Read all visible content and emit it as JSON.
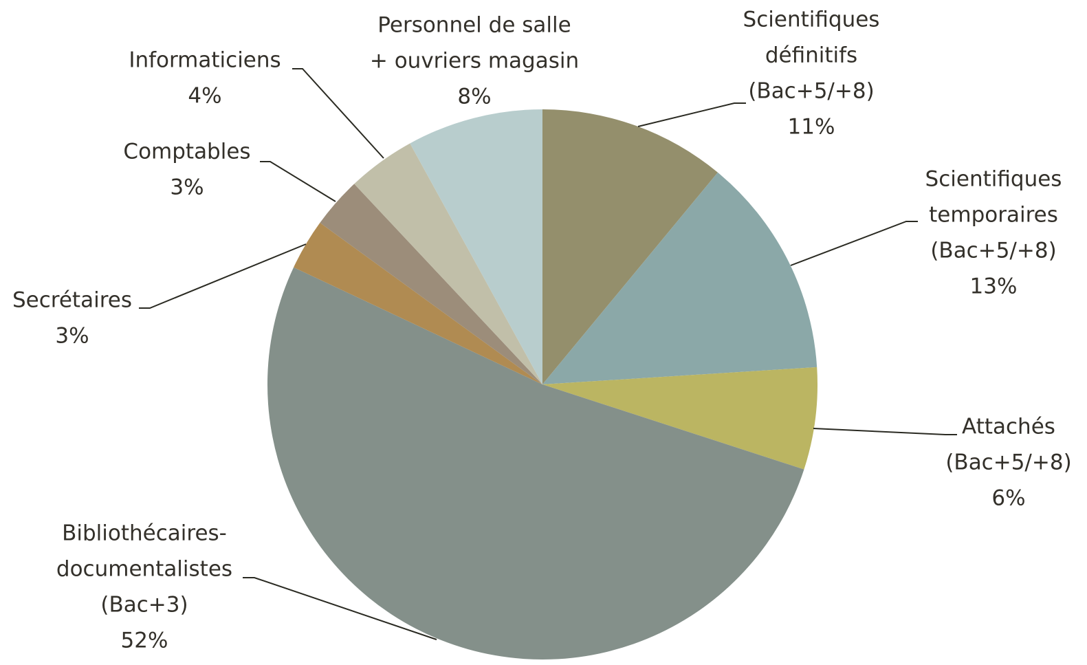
{
  "chart_data": {
    "type": "pie",
    "categories": [
      [
        "Scientifiques",
        "définitifs",
        "(Bac+5/+8)"
      ],
      [
        "Scientifiques",
        "temporaires",
        "(Bac+5/+8)"
      ],
      [
        "Attachés",
        "(Bac+5/+8)"
      ],
      [
        "Bibliothécaires-",
        "documentalistes",
        "(Bac+3)"
      ],
      [
        "Secrétaires"
      ],
      [
        "Comptables"
      ],
      [
        "Informaticiens"
      ],
      [
        "Personnel de salle",
        "+ ouvriers magasin"
      ]
    ],
    "values": [
      11,
      13,
      6,
      52,
      3,
      3,
      4,
      8
    ],
    "value_labels": [
      "11%",
      "13%",
      "6%",
      "52%",
      "3%",
      "3%",
      "4%",
      "8%"
    ],
    "colors": [
      "#948f6c",
      "#8ba8a8",
      "#bbb562",
      "#84908a",
      "#b08b52",
      "#9c8d7a",
      "#c1bfa9",
      "#b8cdcd"
    ]
  }
}
